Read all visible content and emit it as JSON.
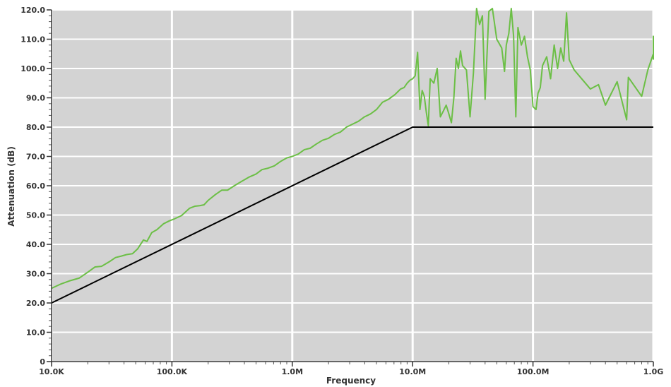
{
  "chart_data": {
    "type": "line",
    "title": "",
    "xlabel": "Frequency",
    "ylabel": "Attenuation (dB)",
    "x_scale": "log",
    "xlim": [
      10000,
      1000000000
    ],
    "ylim": [
      0,
      120
    ],
    "grid": true,
    "background_color": "#d3d3d3",
    "grid_color": "#ffffff",
    "x_ticks": [
      {
        "value": 10000,
        "label": "10.0K"
      },
      {
        "value": 100000,
        "label": "100.0K"
      },
      {
        "value": 1000000,
        "label": "1.0M"
      },
      {
        "value": 10000000,
        "label": "10.0M"
      },
      {
        "value": 100000000,
        "label": "100.0M"
      },
      {
        "value": 1000000000,
        "label": "1.0G"
      }
    ],
    "y_ticks": [
      {
        "value": 0,
        "label": "0"
      },
      {
        "value": 10,
        "label": "10.0"
      },
      {
        "value": 20,
        "label": "20.0"
      },
      {
        "value": 30,
        "label": "30.0"
      },
      {
        "value": 40,
        "label": "40.0"
      },
      {
        "value": 50,
        "label": "50.0"
      },
      {
        "value": 60,
        "label": "60.0"
      },
      {
        "value": 70,
        "label": "70.0"
      },
      {
        "value": 80,
        "label": "80.0"
      },
      {
        "value": 90,
        "label": "90.0"
      },
      {
        "value": 100,
        "label": "100.0"
      },
      {
        "value": 110,
        "label": "110.0"
      },
      {
        "value": 120,
        "label": "120.0"
      }
    ],
    "series": [
      {
        "color": "#6cbf46",
        "points": [
          [
            10000,
            25
          ],
          [
            12000,
            26.5
          ],
          [
            14000,
            27.5
          ],
          [
            17000,
            28.5
          ],
          [
            20000,
            30.5
          ],
          [
            23000,
            32.3
          ],
          [
            26000,
            32.5
          ],
          [
            30000,
            34
          ],
          [
            34000,
            35.5
          ],
          [
            38000,
            36
          ],
          [
            42000,
            36.5
          ],
          [
            47000,
            36.8
          ],
          [
            52000,
            38.5
          ],
          [
            58000,
            41.5
          ],
          [
            62000,
            41
          ],
          [
            68000,
            44
          ],
          [
            75000,
            45
          ],
          [
            85000,
            47
          ],
          [
            95000,
            48
          ],
          [
            105000,
            48.7
          ],
          [
            120000,
            49.8
          ],
          [
            140000,
            52.3
          ],
          [
            155000,
            53
          ],
          [
            170000,
            53.2
          ],
          [
            185000,
            53.5
          ],
          [
            200000,
            55
          ],
          [
            230000,
            57
          ],
          [
            260000,
            58.5
          ],
          [
            290000,
            58.5
          ],
          [
            330000,
            60
          ],
          [
            380000,
            61.5
          ],
          [
            440000,
            63
          ],
          [
            500000,
            64
          ],
          [
            560000,
            65.5
          ],
          [
            630000,
            66
          ],
          [
            710000,
            66.8
          ],
          [
            800000,
            68.3
          ],
          [
            900000,
            69.5
          ],
          [
            1000000,
            70
          ],
          [
            1120000,
            70.8
          ],
          [
            1260000,
            72.3
          ],
          [
            1410000,
            72.8
          ],
          [
            1580000,
            74.2
          ],
          [
            1780000,
            75.5
          ],
          [
            2000000,
            76.2
          ],
          [
            2240000,
            77.5
          ],
          [
            2510000,
            78.3
          ],
          [
            2820000,
            80
          ],
          [
            3160000,
            81
          ],
          [
            3550000,
            82
          ],
          [
            3980000,
            83.5
          ],
          [
            4470000,
            84.5
          ],
          [
            5010000,
            86
          ],
          [
            5620000,
            88.5
          ],
          [
            6310000,
            89.5
          ],
          [
            7080000,
            91
          ],
          [
            7940000,
            93
          ],
          [
            8500000,
            93.5
          ],
          [
            9000000,
            95
          ],
          [
            9500000,
            96
          ],
          [
            10000000,
            96.5
          ],
          [
            10500000,
            97.5
          ],
          [
            11000000,
            105.5
          ],
          [
            11500000,
            86
          ],
          [
            12000000,
            92.5
          ],
          [
            12500000,
            90.5
          ],
          [
            13000000,
            85
          ],
          [
            13500000,
            80.5
          ],
          [
            14000000,
            96.5
          ],
          [
            15000000,
            95
          ],
          [
            16000000,
            100
          ],
          [
            17000000,
            83.5
          ],
          [
            18000000,
            85.5
          ],
          [
            19000000,
            87.5
          ],
          [
            20000000,
            84.5
          ],
          [
            21000000,
            81.5
          ],
          [
            22000000,
            90
          ],
          [
            23000000,
            103.5
          ],
          [
            24000000,
            100
          ],
          [
            25000000,
            106
          ],
          [
            26000000,
            101
          ],
          [
            28000000,
            99.5
          ],
          [
            30000000,
            83.5
          ],
          [
            32000000,
            98.5
          ],
          [
            34000000,
            120.5
          ],
          [
            36000000,
            115
          ],
          [
            38000000,
            118
          ],
          [
            40000000,
            89.5
          ],
          [
            43000000,
            119.5
          ],
          [
            46000000,
            120.5
          ],
          [
            50000000,
            110
          ],
          [
            55000000,
            107
          ],
          [
            58000000,
            99
          ],
          [
            60000000,
            108
          ],
          [
            63000000,
            112
          ],
          [
            66000000,
            120.5
          ],
          [
            69000000,
            111
          ],
          [
            72000000,
            83.5
          ],
          [
            75000000,
            114
          ],
          [
            80000000,
            108
          ],
          [
            85000000,
            111
          ],
          [
            90000000,
            104
          ],
          [
            95000000,
            99.5
          ],
          [
            100000000,
            87
          ],
          [
            106000000,
            86
          ],
          [
            110000000,
            91.5
          ],
          [
            115000000,
            93.5
          ],
          [
            120000000,
            101
          ],
          [
            130000000,
            104
          ],
          [
            140000000,
            96.5
          ],
          [
            150000000,
            108
          ],
          [
            160000000,
            100
          ],
          [
            170000000,
            107
          ],
          [
            180000000,
            102.5
          ],
          [
            190000000,
            119
          ],
          [
            200000000,
            103
          ],
          [
            220000000,
            99.5
          ],
          [
            300000000,
            93
          ],
          [
            350000000,
            94.5
          ],
          [
            400000000,
            87.5
          ],
          [
            500000000,
            95.5
          ],
          [
            600000000,
            82.5
          ],
          [
            620000000,
            97
          ],
          [
            800000000,
            90.5
          ],
          [
            900000000,
            99.5
          ],
          [
            1000000000,
            105
          ],
          [
            1050000000,
            104.5
          ],
          [
            1100000000,
            111
          ],
          [
            1150000000,
            108
          ],
          [
            1200000000,
            103
          ]
        ]
      },
      {
        "color": "#000000",
        "points": [
          [
            10000,
            20
          ],
          [
            10000000,
            80
          ],
          [
            1200000000,
            80
          ]
        ]
      }
    ]
  }
}
